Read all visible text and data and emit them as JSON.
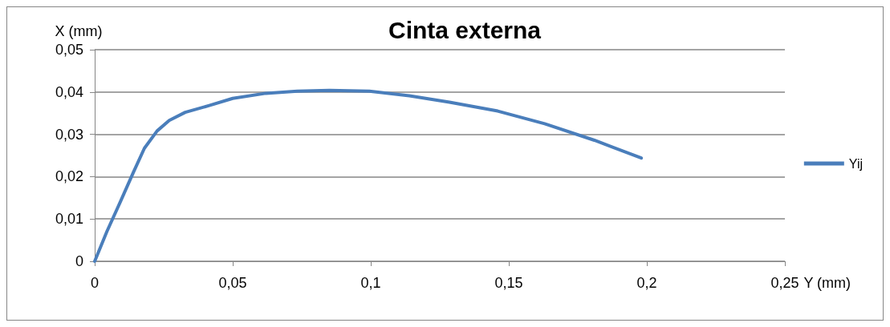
{
  "chart_data": {
    "type": "line",
    "title": "Cinta externa",
    "xlabel": "Y (mm)",
    "ylabel": "X (mm)",
    "xlim": [
      0,
      0.25
    ],
    "xticks": [
      {
        "value": 0,
        "label": "0"
      },
      {
        "value": 0.05,
        "label": "0,05"
      },
      {
        "value": 0.1,
        "label": "0,1"
      },
      {
        "value": 0.15,
        "label": "0,15"
      },
      {
        "value": 0.2,
        "label": "0,2"
      },
      {
        "value": 0.25,
        "label": "0,25"
      }
    ],
    "ylim": [
      0,
      0.05
    ],
    "yticks": [
      {
        "value": 0,
        "label": "0"
      },
      {
        "value": 0.01,
        "label": "0,01"
      },
      {
        "value": 0.02,
        "label": "0,02"
      },
      {
        "value": 0.03,
        "label": "0,03"
      },
      {
        "value": 0.04,
        "label": "0,04"
      },
      {
        "value": 0.05,
        "label": "0,05"
      }
    ],
    "grid": "y",
    "legend": "right",
    "marker": "none",
    "line_style": "solid",
    "series": [
      {
        "name": "Yij",
        "color": "#4a7ebb",
        "x": [
          0,
          0.0044,
          0.0096,
          0.014,
          0.018,
          0.0226,
          0.027,
          0.0328,
          0.0415,
          0.05,
          0.062,
          0.0734,
          0.085,
          0.0995,
          0.114,
          0.1285,
          0.146,
          0.163,
          0.181,
          0.198
        ],
        "values": [
          0,
          0.007,
          0.0145,
          0.021,
          0.0267,
          0.0308,
          0.0333,
          0.0352,
          0.0368,
          0.0385,
          0.0397,
          0.0402,
          0.0404,
          0.0402,
          0.0391,
          0.0376,
          0.0355,
          0.0325,
          0.0286,
          0.0244
        ]
      }
    ]
  }
}
